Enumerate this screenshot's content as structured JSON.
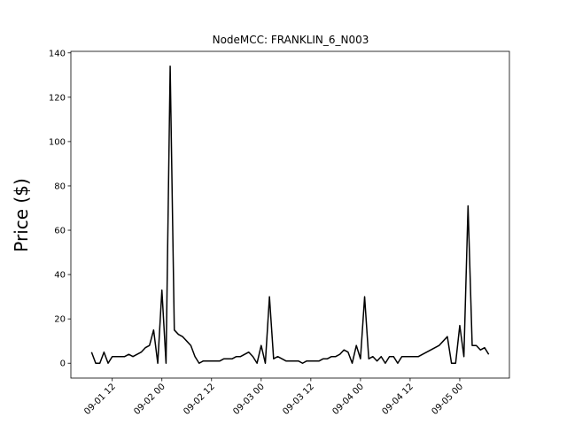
{
  "chart_data": {
    "type": "line",
    "title": "NodeMCC: FRANKLIN_6_N003",
    "ylabel": "Price ($)",
    "color": "#000000",
    "x": [
      "09-01 07",
      "09-01 08",
      "09-01 09",
      "09-01 10",
      "09-01 11",
      "09-01 12",
      "09-01 13",
      "09-01 14",
      "09-01 15",
      "09-01 16",
      "09-01 17",
      "09-01 18",
      "09-01 19",
      "09-01 20",
      "09-01 21",
      "09-01 22",
      "09-01 23",
      "09-02 00",
      "09-02 01",
      "09-02 02",
      "09-02 03",
      "09-02 04",
      "09-02 05",
      "09-02 06",
      "09-02 07",
      "09-02 08",
      "09-02 09",
      "09-02 10",
      "09-02 11",
      "09-02 12",
      "09-02 13",
      "09-02 14",
      "09-02 15",
      "09-02 16",
      "09-02 17",
      "09-02 18",
      "09-02 19",
      "09-02 20",
      "09-02 21",
      "09-02 22",
      "09-02 23",
      "09-03 00",
      "09-03 01",
      "09-03 02",
      "09-03 03",
      "09-03 04",
      "09-03 05",
      "09-03 06",
      "09-03 07",
      "09-03 08",
      "09-03 09",
      "09-03 10",
      "09-03 11",
      "09-03 12",
      "09-03 13",
      "09-03 14",
      "09-03 15",
      "09-03 16",
      "09-03 17",
      "09-03 18",
      "09-03 19",
      "09-03 20",
      "09-03 21",
      "09-03 22",
      "09-03 23",
      "09-04 00",
      "09-04 01",
      "09-04 02",
      "09-04 03",
      "09-04 04",
      "09-04 05",
      "09-04 06",
      "09-04 07",
      "09-04 08",
      "09-04 09",
      "09-04 10",
      "09-04 11",
      "09-04 12",
      "09-04 13",
      "09-04 14",
      "09-04 15",
      "09-04 16",
      "09-04 17",
      "09-04 18",
      "09-04 19",
      "09-04 20",
      "09-04 21",
      "09-04 22",
      "09-04 23",
      "09-05 00",
      "09-05 01",
      "09-05 02",
      "09-05 03",
      "09-05 04",
      "09-05 05",
      "09-05 06",
      "09-05 07"
    ],
    "values": [
      5,
      0,
      0,
      5,
      0,
      3,
      3,
      3,
      3,
      4,
      3,
      4,
      5,
      7,
      8,
      15,
      0,
      33,
      0,
      134,
      15,
      13,
      12,
      10,
      8,
      3,
      0,
      1,
      1,
      1,
      1,
      1,
      2,
      2,
      2,
      3,
      3,
      4,
      5,
      3,
      0,
      8,
      0,
      30,
      2,
      3,
      2,
      1,
      1,
      1,
      1,
      0,
      1,
      1,
      1,
      1,
      2,
      2,
      3,
      3,
      4,
      6,
      5,
      0,
      8,
      2,
      30,
      2,
      3,
      1,
      3,
      0,
      3,
      3,
      0,
      3,
      3,
      3,
      3,
      3,
      4,
      5,
      6,
      7,
      8,
      10,
      12,
      0,
      0,
      17,
      3,
      71,
      8,
      8,
      6,
      7,
      4
    ],
    "xlim": [
      "09-01 02",
      "09-05 12"
    ],
    "xticks": [
      "09-01 12",
      "09-02 00",
      "09-02 12",
      "09-03 00",
      "09-03 12",
      "09-04 00",
      "09-04 12",
      "09-05 00"
    ],
    "ylim": [
      -6.7,
      140.7
    ],
    "yticks": [
      0,
      20,
      40,
      60,
      80,
      100,
      120,
      140
    ]
  }
}
